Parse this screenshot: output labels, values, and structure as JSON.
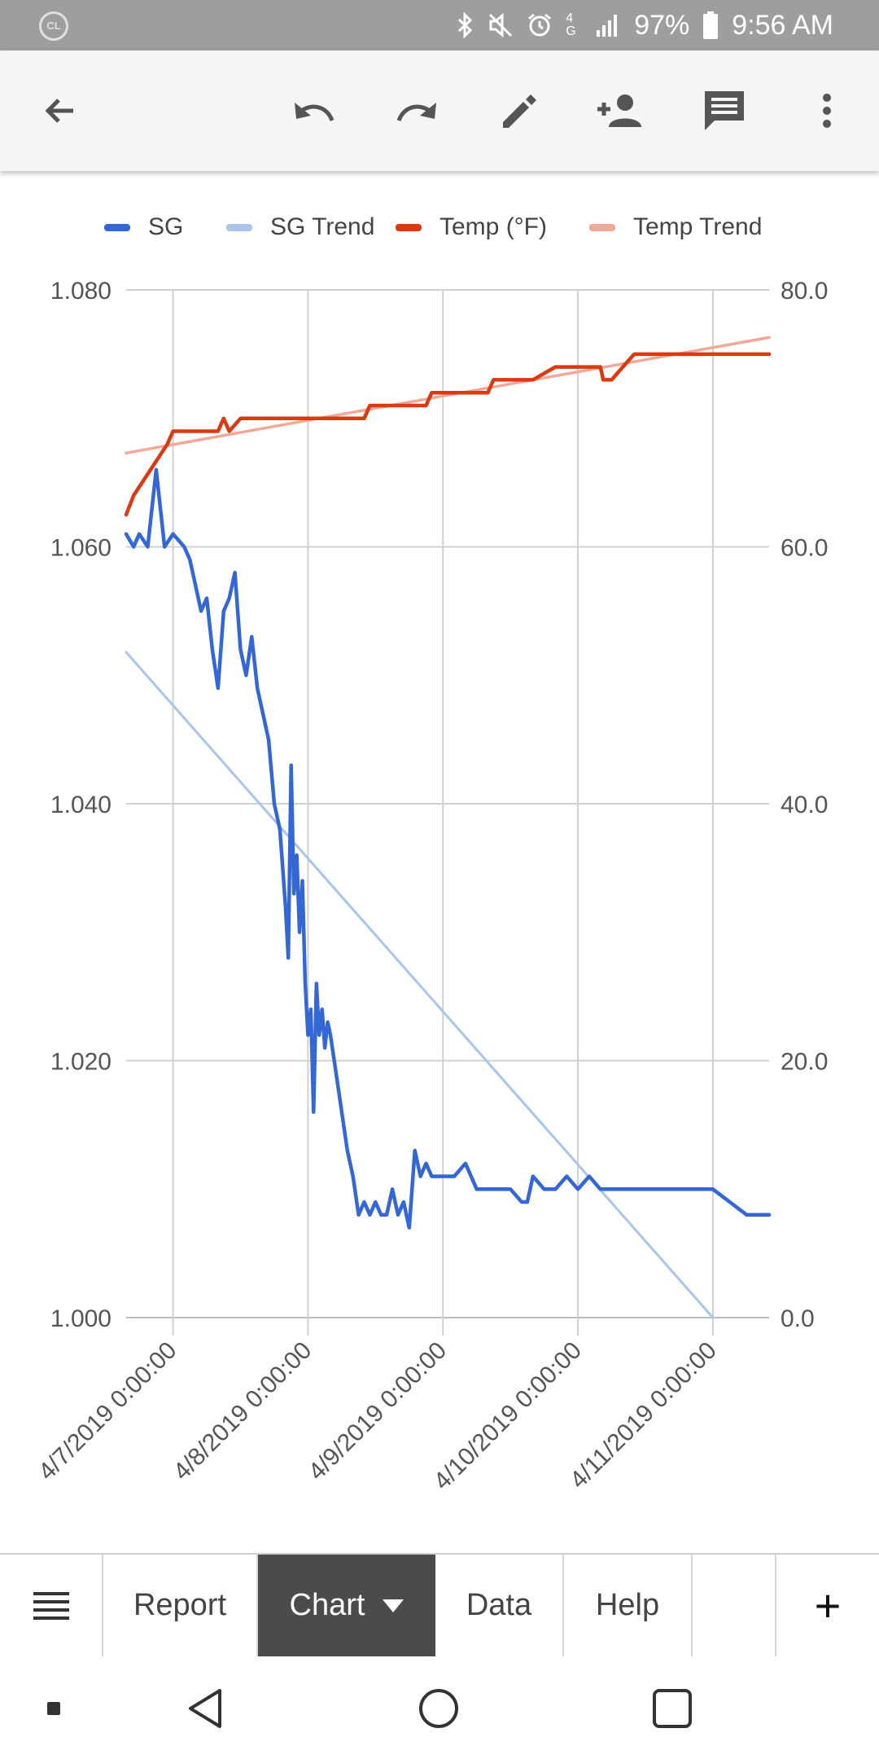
{
  "status": {
    "battery": "97%",
    "time": "9:56 AM",
    "network": "4G",
    "carrier_badge": "CL"
  },
  "toolbar": {
    "icons": [
      "back-arrow-icon",
      "undo-icon",
      "redo-icon",
      "pencil-icon",
      "add-person-icon",
      "comment-icon",
      "more-vert-icon"
    ]
  },
  "chart_data": {
    "type": "line",
    "legend": [
      "SG",
      "SG Trend",
      "Temp (°F)",
      "Temp Trend"
    ],
    "legend_placement": "top",
    "grid": true,
    "colors": {
      "SG": "#3367d6",
      "SG Trend": "#aac4ec",
      "Temp (°F)": "#dc3912",
      "Temp Trend": "#f0a898"
    },
    "x_ticks": [
      "4/7/2019 0:00:00",
      "4/8/2019 0:00:00",
      "4/9/2019 0:00:00",
      "4/10/2019 0:00:00",
      "4/11/2019 0:00:00"
    ],
    "xlim": [
      "4/6/2019 15:40",
      "4/11/2019 10:00"
    ],
    "y_left": {
      "ticks": [
        "1.080",
        "1.060",
        "1.040",
        "1.020",
        "1.000"
      ],
      "ylim": [
        1.0,
        1.08
      ]
    },
    "y_right": {
      "ticks": [
        "80.0",
        "60.0",
        "40.0",
        "20.0",
        "0.0"
      ],
      "ylim": [
        0,
        80
      ]
    },
    "series": [
      {
        "name": "SG",
        "axis": "left",
        "x": [
          "4/6/2019 15:40",
          "4/6/2019 17:00",
          "4/6/2019 18:00",
          "4/6/2019 19:30",
          "4/6/2019 21:00",
          "4/6/2019 22:30",
          "4/7/2019 0:00",
          "4/7/2019 2:00",
          "4/7/2019 3:00",
          "4/7/2019 4:00",
          "4/7/2019 5:00",
          "4/7/2019 6:00",
          "4/7/2019 7:00",
          "4/7/2019 8:00",
          "4/7/2019 9:00",
          "4/7/2019 10:00",
          "4/7/2019 11:00",
          "4/7/2019 12:00",
          "4/7/2019 13:00",
          "4/7/2019 14:00",
          "4/7/2019 15:00",
          "4/7/2019 16:00",
          "4/7/2019 17:00",
          "4/7/2019 18:00",
          "4/7/2019 19:00",
          "4/7/2019 20:00",
          "4/7/2019 20:30",
          "4/7/2019 21:00",
          "4/7/2019 21:30",
          "4/7/2019 22:00",
          "4/7/2019 22:30",
          "4/7/2019 23:00",
          "4/7/2019 23:30",
          "4/8/2019 0:00",
          "4/8/2019 0:30",
          "4/8/2019 1:00",
          "4/8/2019 1:30",
          "4/8/2019 2:00",
          "4/8/2019 2:30",
          "4/8/2019 3:00",
          "4/8/2019 3:30",
          "4/8/2019 4:00",
          "4/8/2019 5:00",
          "4/8/2019 6:00",
          "4/8/2019 7:00",
          "4/8/2019 8:00",
          "4/8/2019 9:00",
          "4/8/2019 10:00",
          "4/8/2019 11:00",
          "4/8/2019 12:00",
          "4/8/2019 13:00",
          "4/8/2019 14:00",
          "4/8/2019 15:00",
          "4/8/2019 16:00",
          "4/8/2019 17:00",
          "4/8/2019 18:00",
          "4/8/2019 19:00",
          "4/8/2019 20:00",
          "4/8/2019 21:00",
          "4/8/2019 22:00",
          "4/8/2019 23:00",
          "4/9/2019 0:00",
          "4/9/2019 2:00",
          "4/9/2019 4:00",
          "4/9/2019 6:00",
          "4/9/2019 7:00",
          "4/9/2019 8:00",
          "4/9/2019 10:00",
          "4/9/2019 12:00",
          "4/9/2019 14:00",
          "4/9/2019 15:00",
          "4/9/2019 16:00",
          "4/9/2019 18:00",
          "4/9/2019 20:00",
          "4/9/2019 22:00",
          "4/10/2019 0:00",
          "4/10/2019 2:00",
          "4/10/2019 4:00",
          "4/10/2019 8:00",
          "4/10/2019 12:00",
          "4/10/2019 18:00",
          "4/11/2019 0:00",
          "4/11/2019 3:00",
          "4/11/2019 6:00",
          "4/11/2019 9:00",
          "4/11/2019 10:00"
        ],
        "values": [
          1.061,
          1.06,
          1.061,
          1.06,
          1.066,
          1.06,
          1.061,
          1.06,
          1.059,
          1.057,
          1.055,
          1.056,
          1.052,
          1.049,
          1.055,
          1.056,
          1.058,
          1.052,
          1.05,
          1.053,
          1.049,
          1.047,
          1.045,
          1.04,
          1.038,
          1.032,
          1.028,
          1.043,
          1.033,
          1.036,
          1.03,
          1.034,
          1.026,
          1.022,
          1.024,
          1.016,
          1.026,
          1.022,
          1.024,
          1.021,
          1.023,
          1.022,
          1.019,
          1.016,
          1.013,
          1.011,
          1.008,
          1.009,
          1.008,
          1.009,
          1.008,
          1.008,
          1.01,
          1.008,
          1.009,
          1.007,
          1.013,
          1.011,
          1.012,
          1.011,
          1.011,
          1.011,
          1.011,
          1.012,
          1.01,
          1.01,
          1.01,
          1.01,
          1.01,
          1.009,
          1.009,
          1.011,
          1.01,
          1.01,
          1.011,
          1.01,
          1.011,
          1.01,
          1.01,
          1.01,
          1.01,
          1.01,
          1.009,
          1.008,
          1.008,
          1.008
        ]
      },
      {
        "name": "SG Trend",
        "axis": "left",
        "x": [
          "4/6/2019 15:40",
          "4/11/2019 0:00"
        ],
        "values": [
          1.0518,
          1.0
        ]
      },
      {
        "name": "Temp (°F)",
        "axis": "right",
        "x": [
          "4/6/2019 15:40",
          "4/6/2019 17:00",
          "4/6/2019 18:30",
          "4/6/2019 20:00",
          "4/6/2019 21:30",
          "4/6/2019 23:00",
          "4/7/2019 0:00",
          "4/7/2019 4:00",
          "4/7/2019 8:00",
          "4/7/2019 9:00",
          "4/7/2019 10:00",
          "4/7/2019 12:00",
          "4/7/2019 18:00",
          "4/8/2019 0:00",
          "4/8/2019 10:00",
          "4/8/2019 11:00",
          "4/8/2019 18:00",
          "4/8/2019 21:00",
          "4/8/2019 22:00",
          "4/9/2019 0:00",
          "4/9/2019 8:00",
          "4/9/2019 9:00",
          "4/9/2019 10:00",
          "4/9/2019 16:00",
          "4/9/2019 20:00",
          "4/10/2019 0:00",
          "4/10/2019 4:00",
          "4/10/2019 4:30",
          "4/10/2019 6:00",
          "4/10/2019 8:00",
          "4/10/2019 10:00",
          "4/10/2019 18:00",
          "4/11/2019 0:00",
          "4/11/2019 10:00"
        ],
        "values": [
          62.5,
          64,
          65,
          66,
          67,
          68,
          69,
          69,
          69,
          70,
          69,
          70,
          70,
          70,
          70,
          71,
          71,
          71,
          72,
          72,
          72,
          73,
          73,
          73,
          74,
          74,
          74,
          73,
          73,
          74,
          75,
          75,
          75,
          75
        ]
      },
      {
        "name": "Temp Trend",
        "axis": "right",
        "x": [
          "4/6/2019 15:40",
          "4/11/2019 10:00"
        ],
        "values": [
          67.3,
          76.3
        ]
      }
    ]
  },
  "tabs": {
    "report": "Report",
    "chart": "Chart",
    "data": "Data",
    "help": "Help",
    "add": "+"
  }
}
